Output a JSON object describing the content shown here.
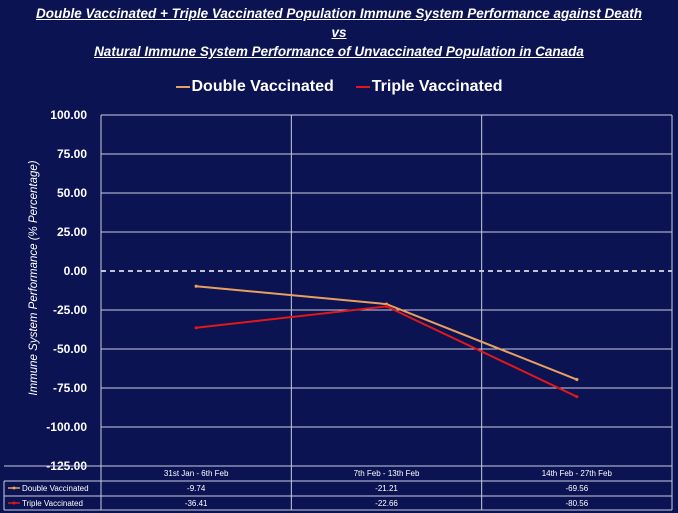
{
  "titles": {
    "line1": "Double Vaccinated + Triple Vaccinated Population Immune System Performance against Death",
    "line2": "vs",
    "line3": "Natural Immune System Performance of Unvaccinated Population in Canada"
  },
  "chart_data": {
    "type": "line",
    "title": "Double Vaccinated + Triple Vaccinated Population Immune System Performance against Death vs Natural Immune System Performance of Unvaccinated Population in Canada",
    "xlabel": "",
    "ylabel": "Immune System Performance (% Percentage)",
    "categories": [
      "31st Jan - 6th Feb",
      "7th Feb - 13th Feb",
      "14th Feb - 27th Feb"
    ],
    "series": [
      {
        "name": "Double Vaccinated",
        "values": [
          -9.74,
          -21.21,
          -69.56
        ],
        "labels": [
          "-9.74",
          "-21.21",
          "-69.56"
        ],
        "color": "#e8a060"
      },
      {
        "name": "Triple Vaccinated",
        "values": [
          -36.41,
          -22.66,
          -80.56
        ],
        "labels": [
          "-36.41",
          "-22.66",
          "-80.56"
        ],
        "color": "#e01818"
      }
    ],
    "ylim": [
      -125,
      100
    ],
    "yticks": [
      "100.00",
      "75.00",
      "50.00",
      "25.00",
      "0.00",
      "-25.00",
      "-50.00",
      "-75.00",
      "-100.00",
      "-125.00"
    ],
    "grid": true,
    "zero_line": "dashed",
    "legend_position": "top",
    "data_table": true
  }
}
